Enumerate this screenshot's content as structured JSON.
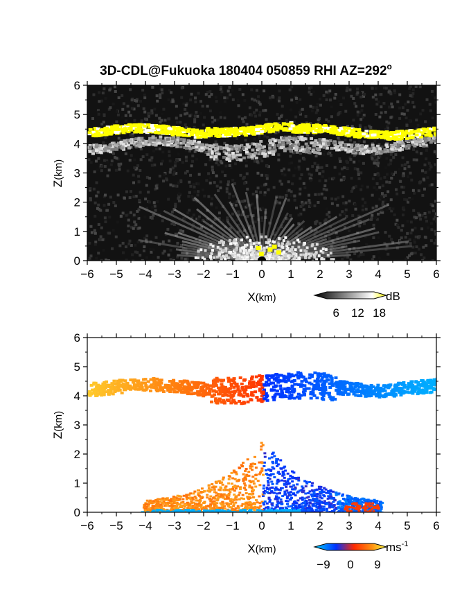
{
  "title_main": "3D-CDL@Fukuoka 180404 050859 RHI AZ=292",
  "title_sup": "o",
  "chart_data": [
    {
      "type": "heatmap",
      "panel": "top",
      "quantity": "reflectivity",
      "xlabel": "X",
      "xlabel_unit": "(km)",
      "ylabel": "Z",
      "ylabel_unit": "(km)",
      "xlim": [
        -6,
        6
      ],
      "ylim": [
        0,
        6
      ],
      "xticks": [
        -6,
        -5,
        -4,
        -3,
        -2,
        -1,
        0,
        1,
        2,
        3,
        4,
        5,
        6
      ],
      "yticks": [
        0,
        1,
        2,
        3,
        4,
        5,
        6
      ],
      "colorbar": {
        "unit": "dB",
        "ticks": [
          6,
          12,
          18
        ],
        "range": [
          0,
          20
        ],
        "colors": [
          "#000000",
          "#ffffff",
          "#ffff00"
        ]
      },
      "features": [
        {
          "name": "cloud base layer",
          "x_range": [
            -6,
            6
          ],
          "z_base_km": 4.3,
          "z_top_km": 4.7,
          "value_db": 18
        },
        {
          "name": "near-ground clutter",
          "x_range": [
            -3,
            3
          ],
          "z_range": [
            0,
            1.5
          ],
          "value_db": 10
        }
      ]
    },
    {
      "type": "heatmap",
      "panel": "bottom",
      "quantity": "radial velocity",
      "xlabel": "X",
      "xlabel_unit": "(km)",
      "ylabel": "Z",
      "ylabel_unit": "(km)",
      "xlim": [
        -6,
        6
      ],
      "ylim": [
        0,
        6
      ],
      "xticks": [
        -6,
        -5,
        -4,
        -3,
        -2,
        -1,
        0,
        1,
        2,
        3,
        4,
        5,
        6
      ],
      "yticks": [
        0,
        1,
        2,
        3,
        4,
        5,
        6
      ],
      "colorbar": {
        "unit": "ms",
        "unit_sup": "-1",
        "ticks": [
          -9,
          0,
          9
        ],
        "range": [
          -12,
          12
        ],
        "colors": [
          "#00c8ff",
          "#0030ff",
          "#ff2a00",
          "#ffff40"
        ]
      },
      "features": [
        {
          "name": "cloud layer",
          "x_range": [
            -6,
            6
          ],
          "z_range": [
            3.6,
            4.8
          ],
          "velocity_ms": [
            -9,
            9
          ]
        },
        {
          "name": "boundary layer",
          "x_range": [
            -4.2,
            4.2
          ],
          "z_range": [
            0,
            2.8
          ],
          "velocity_ms": [
            -6,
            6
          ]
        }
      ]
    }
  ]
}
